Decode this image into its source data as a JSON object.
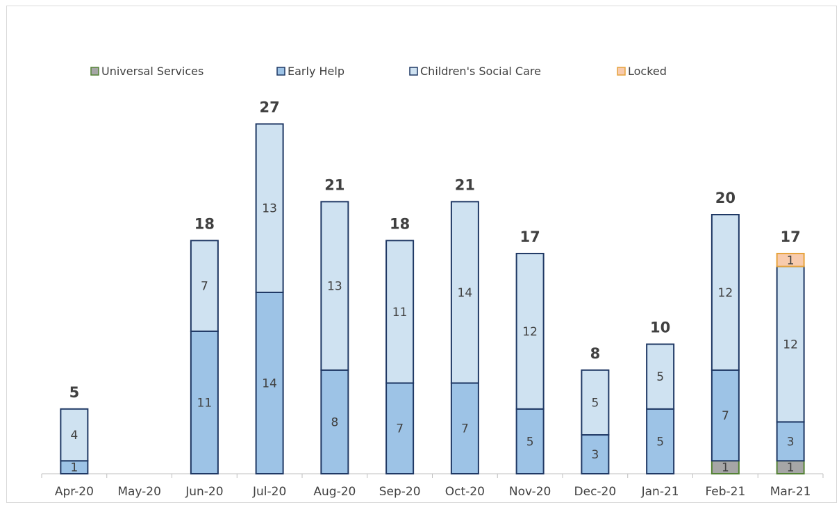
{
  "chart_data": {
    "type": "bar",
    "stacked": true,
    "categories": [
      "Apr-20",
      "May-20",
      "Jun-20",
      "Jul-20",
      "Aug-20",
      "Sep-20",
      "Oct-20",
      "Nov-20",
      "Dec-20",
      "Jan-21",
      "Feb-21",
      "Mar-21"
    ],
    "series": [
      {
        "name": "Universal Services",
        "values": [
          0,
          0,
          0,
          0,
          0,
          0,
          0,
          0,
          0,
          0,
          1,
          1
        ],
        "color": "#a6a6a6",
        "border": "#548235"
      },
      {
        "name": "Early Help",
        "values": [
          1,
          0,
          11,
          14,
          8,
          7,
          7,
          5,
          3,
          5,
          7,
          3
        ],
        "color": "#9dc3e6",
        "border": "#1f3864"
      },
      {
        "name": "Children's Social Care",
        "values": [
          4,
          0,
          7,
          13,
          13,
          11,
          14,
          12,
          5,
          5,
          12,
          12
        ],
        "color": "#cfe2f1",
        "border": "#1f3864"
      },
      {
        "name": "Locked",
        "values": [
          0,
          0,
          0,
          0,
          0,
          0,
          0,
          0,
          0,
          0,
          0,
          1
        ],
        "color": "#f8cbad",
        "border": "#e6a33c"
      }
    ],
    "totals": [
      5,
      null,
      18,
      27,
      21,
      18,
      21,
      17,
      8,
      10,
      20,
      17
    ],
    "legend_position": "top",
    "grid": false,
    "ylim": [
      0,
      30
    ],
    "title": "",
    "xlabel": "",
    "ylabel": ""
  }
}
